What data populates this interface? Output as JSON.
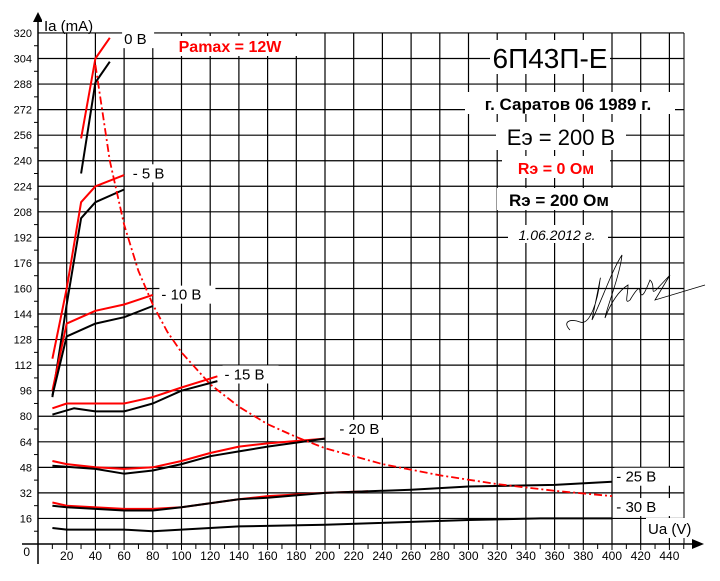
{
  "chart_data": {
    "type": "line",
    "title": "6П43П-Е",
    "subtitle": "г. Саратов 06 1989 г.",
    "annotations": {
      "supply": "Еэ = 200 В",
      "rs_red": "Rэ = 0 Ом",
      "rs_black": "Rэ = 200 Ом",
      "date": "1.06.2012 г.",
      "pamax": "Pamax = 12W"
    },
    "xlabel": "Ua (V)",
    "ylabel": "Ia (mA)",
    "xlim": [
      0,
      450
    ],
    "ylim": [
      0,
      320
    ],
    "x_ticks": [
      20,
      40,
      60,
      80,
      100,
      120,
      140,
      160,
      180,
      200,
      220,
      240,
      260,
      280,
      300,
      320,
      340,
      360,
      380,
      400,
      420,
      440
    ],
    "y_ticks": [
      16,
      32,
      48,
      64,
      80,
      96,
      112,
      128,
      144,
      160,
      176,
      192,
      208,
      224,
      240,
      256,
      272,
      288,
      304,
      320
    ],
    "origin_label": "0",
    "grid": true,
    "legend": {
      "red": "Rэ = 0 Ом",
      "black": "Rэ = 200 Ом"
    },
    "colors": {
      "red": "#ff0000",
      "black": "#000000"
    },
    "series": [
      {
        "name": "0 В (Rэ=0)",
        "color": "red",
        "grid_voltage": "0 В",
        "points": [
          [
            30,
            254
          ],
          [
            40,
            304
          ],
          [
            50,
            317
          ]
        ]
      },
      {
        "name": "0 В (Rэ=200)",
        "color": "black",
        "grid_voltage": "0 В",
        "points": [
          [
            30,
            232
          ],
          [
            40,
            289
          ],
          [
            50,
            302
          ]
        ]
      },
      {
        "name": "-5 В (Rэ=0)",
        "color": "red",
        "grid_voltage": "- 5 В",
        "points": [
          [
            10,
            116
          ],
          [
            20,
            160
          ],
          [
            30,
            214
          ],
          [
            40,
            224
          ],
          [
            60,
            231
          ]
        ]
      },
      {
        "name": "-5 В (Rэ=200)",
        "color": "black",
        "grid_voltage": "- 5 В",
        "points": [
          [
            10,
            92
          ],
          [
            20,
            150
          ],
          [
            30,
            204
          ],
          [
            40,
            214
          ],
          [
            60,
            222
          ]
        ]
      },
      {
        "name": "-10 В (Rэ=0)",
        "color": "red",
        "grid_voltage": "- 10 В",
        "points": [
          [
            10,
            96
          ],
          [
            20,
            138
          ],
          [
            40,
            146
          ],
          [
            60,
            150
          ],
          [
            80,
            156
          ]
        ]
      },
      {
        "name": "-10 В (Rэ=200)",
        "color": "black",
        "grid_voltage": "- 10 В",
        "points": [
          [
            10,
            93
          ],
          [
            20,
            130
          ],
          [
            40,
            138
          ],
          [
            60,
            142
          ],
          [
            80,
            149
          ]
        ]
      },
      {
        "name": "-15 В (Rэ=0)",
        "color": "red",
        "grid_voltage": "- 15 В",
        "points": [
          [
            10,
            85
          ],
          [
            20,
            88
          ],
          [
            60,
            88
          ],
          [
            80,
            92
          ],
          [
            100,
            98
          ],
          [
            125,
            105
          ]
        ]
      },
      {
        "name": "-15 В (Rэ=200)",
        "color": "black",
        "grid_voltage": "- 15 В",
        "points": [
          [
            10,
            81
          ],
          [
            25,
            85
          ],
          [
            40,
            83
          ],
          [
            60,
            83
          ],
          [
            80,
            88
          ],
          [
            100,
            96
          ],
          [
            125,
            102
          ]
        ]
      },
      {
        "name": "-20 В (Rэ=0)",
        "color": "red",
        "grid_voltage": "- 20 В",
        "points": [
          [
            10,
            52
          ],
          [
            20,
            50
          ],
          [
            40,
            48
          ],
          [
            60,
            47
          ],
          [
            80,
            48
          ],
          [
            100,
            52
          ],
          [
            120,
            57
          ],
          [
            140,
            61
          ],
          [
            160,
            63
          ],
          [
            200,
            66
          ]
        ]
      },
      {
        "name": "-20 В (Rэ=200)",
        "color": "black",
        "grid_voltage": "- 20 В",
        "points": [
          [
            10,
            49
          ],
          [
            40,
            47
          ],
          [
            60,
            44
          ],
          [
            80,
            46
          ],
          [
            100,
            50
          ],
          [
            120,
            55
          ],
          [
            140,
            58
          ],
          [
            160,
            61
          ],
          [
            200,
            66
          ]
        ]
      },
      {
        "name": "-25 В (Rэ=0)",
        "color": "red",
        "grid_voltage": "- 25 В",
        "points": [
          [
            10,
            26
          ],
          [
            20,
            24
          ],
          [
            60,
            22
          ],
          [
            80,
            22
          ],
          [
            100,
            23
          ],
          [
            140,
            28
          ],
          [
            160,
            30
          ],
          [
            200,
            32
          ],
          [
            230,
            33
          ]
        ]
      },
      {
        "name": "-25 В (Rэ=200)",
        "color": "black",
        "grid_voltage": "- 25 В",
        "points": [
          [
            10,
            24
          ],
          [
            20,
            23
          ],
          [
            60,
            21
          ],
          [
            80,
            21
          ],
          [
            100,
            23
          ],
          [
            140,
            28
          ],
          [
            160,
            29
          ],
          [
            200,
            32
          ],
          [
            260,
            34
          ],
          [
            300,
            36
          ],
          [
            360,
            37
          ],
          [
            400,
            39
          ]
        ]
      },
      {
        "name": "-30 В (Rэ=200)",
        "color": "black",
        "grid_voltage": "- 30 В",
        "points": [
          [
            10,
            10
          ],
          [
            20,
            9
          ],
          [
            60,
            9
          ],
          [
            80,
            8
          ],
          [
            100,
            9
          ],
          [
            140,
            11
          ],
          [
            200,
            12
          ],
          [
            300,
            15
          ],
          [
            350,
            16
          ],
          [
            400,
            16
          ]
        ]
      },
      {
        "name": "Pamax = 12W",
        "color": "red",
        "style": "dash-dot",
        "points": [
          [
            40,
            300
          ],
          [
            50,
            240
          ],
          [
            60,
            200
          ],
          [
            70,
            171
          ],
          [
            80,
            150
          ],
          [
            90,
            133
          ],
          [
            100,
            120
          ],
          [
            120,
            100
          ],
          [
            140,
            86
          ],
          [
            160,
            75
          ],
          [
            180,
            67
          ],
          [
            200,
            60
          ],
          [
            240,
            50
          ],
          [
            280,
            43
          ],
          [
            320,
            37.5
          ],
          [
            360,
            33.3
          ],
          [
            400,
            30
          ]
        ]
      }
    ],
    "curve_labels": [
      {
        "text": "0 В",
        "x": 60,
        "y": 313
      },
      {
        "text": "- 5 В",
        "x": 66,
        "y": 229
      },
      {
        "text": "- 10 В",
        "x": 86,
        "y": 153
      },
      {
        "text": "- 15 В",
        "x": 130,
        "y": 103
      },
      {
        "text": "- 20 В",
        "x": 210,
        "y": 69
      },
      {
        "text": "- 25 В",
        "x": 403,
        "y": 39
      },
      {
        "text": "- 30 В",
        "x": 403,
        "y": 20
      }
    ]
  }
}
